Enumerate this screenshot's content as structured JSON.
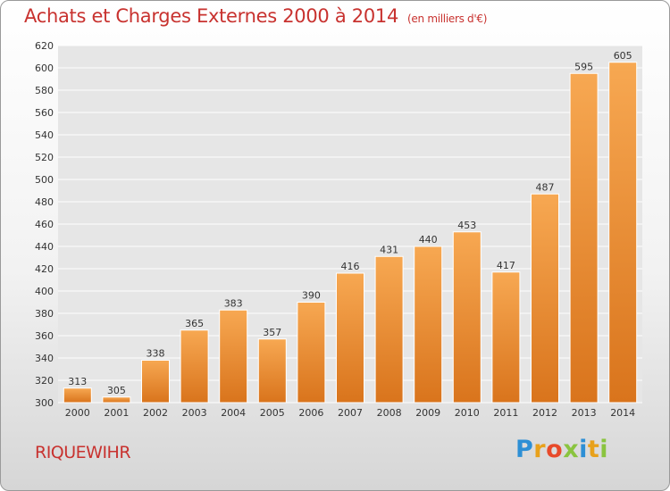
{
  "header": {
    "title": "Achats et Charges Externes 2000 à 2014",
    "subtitle": "(en milliers d'€)"
  },
  "footer": {
    "location": "RIQUEWIHR",
    "brand": {
      "letters": [
        "P",
        "r",
        "o",
        "x",
        "i",
        "t",
        "i"
      ],
      "colors": [
        "#2d8fd5",
        "#e8a11b",
        "#e84a2a",
        "#8ac43f",
        "#2d8fd5",
        "#e8a11b",
        "#8ac43f"
      ]
    }
  },
  "colors": {
    "bar_top": "#f7a852",
    "bar_bottom": "#d9741c",
    "bar_edge": "#ffffff",
    "grid": "#ffffff"
  },
  "chart_data": {
    "type": "bar",
    "title": "Achats et Charges Externes 2000 à 2014",
    "subtitle": "(en milliers d'€)",
    "xlabel": "",
    "ylabel": "",
    "categories": [
      "2000",
      "2001",
      "2002",
      "2003",
      "2004",
      "2005",
      "2006",
      "2007",
      "2008",
      "2009",
      "2010",
      "2011",
      "2012",
      "2013",
      "2014"
    ],
    "values": [
      313,
      305,
      338,
      365,
      383,
      357,
      390,
      416,
      431,
      440,
      453,
      417,
      487,
      595,
      605
    ],
    "ylim": [
      300,
      620
    ],
    "yticks": [
      300,
      320,
      340,
      360,
      380,
      400,
      420,
      440,
      460,
      480,
      500,
      520,
      540,
      560,
      580,
      600,
      620
    ],
    "grid": true,
    "legend": "none",
    "data_labels": true
  }
}
